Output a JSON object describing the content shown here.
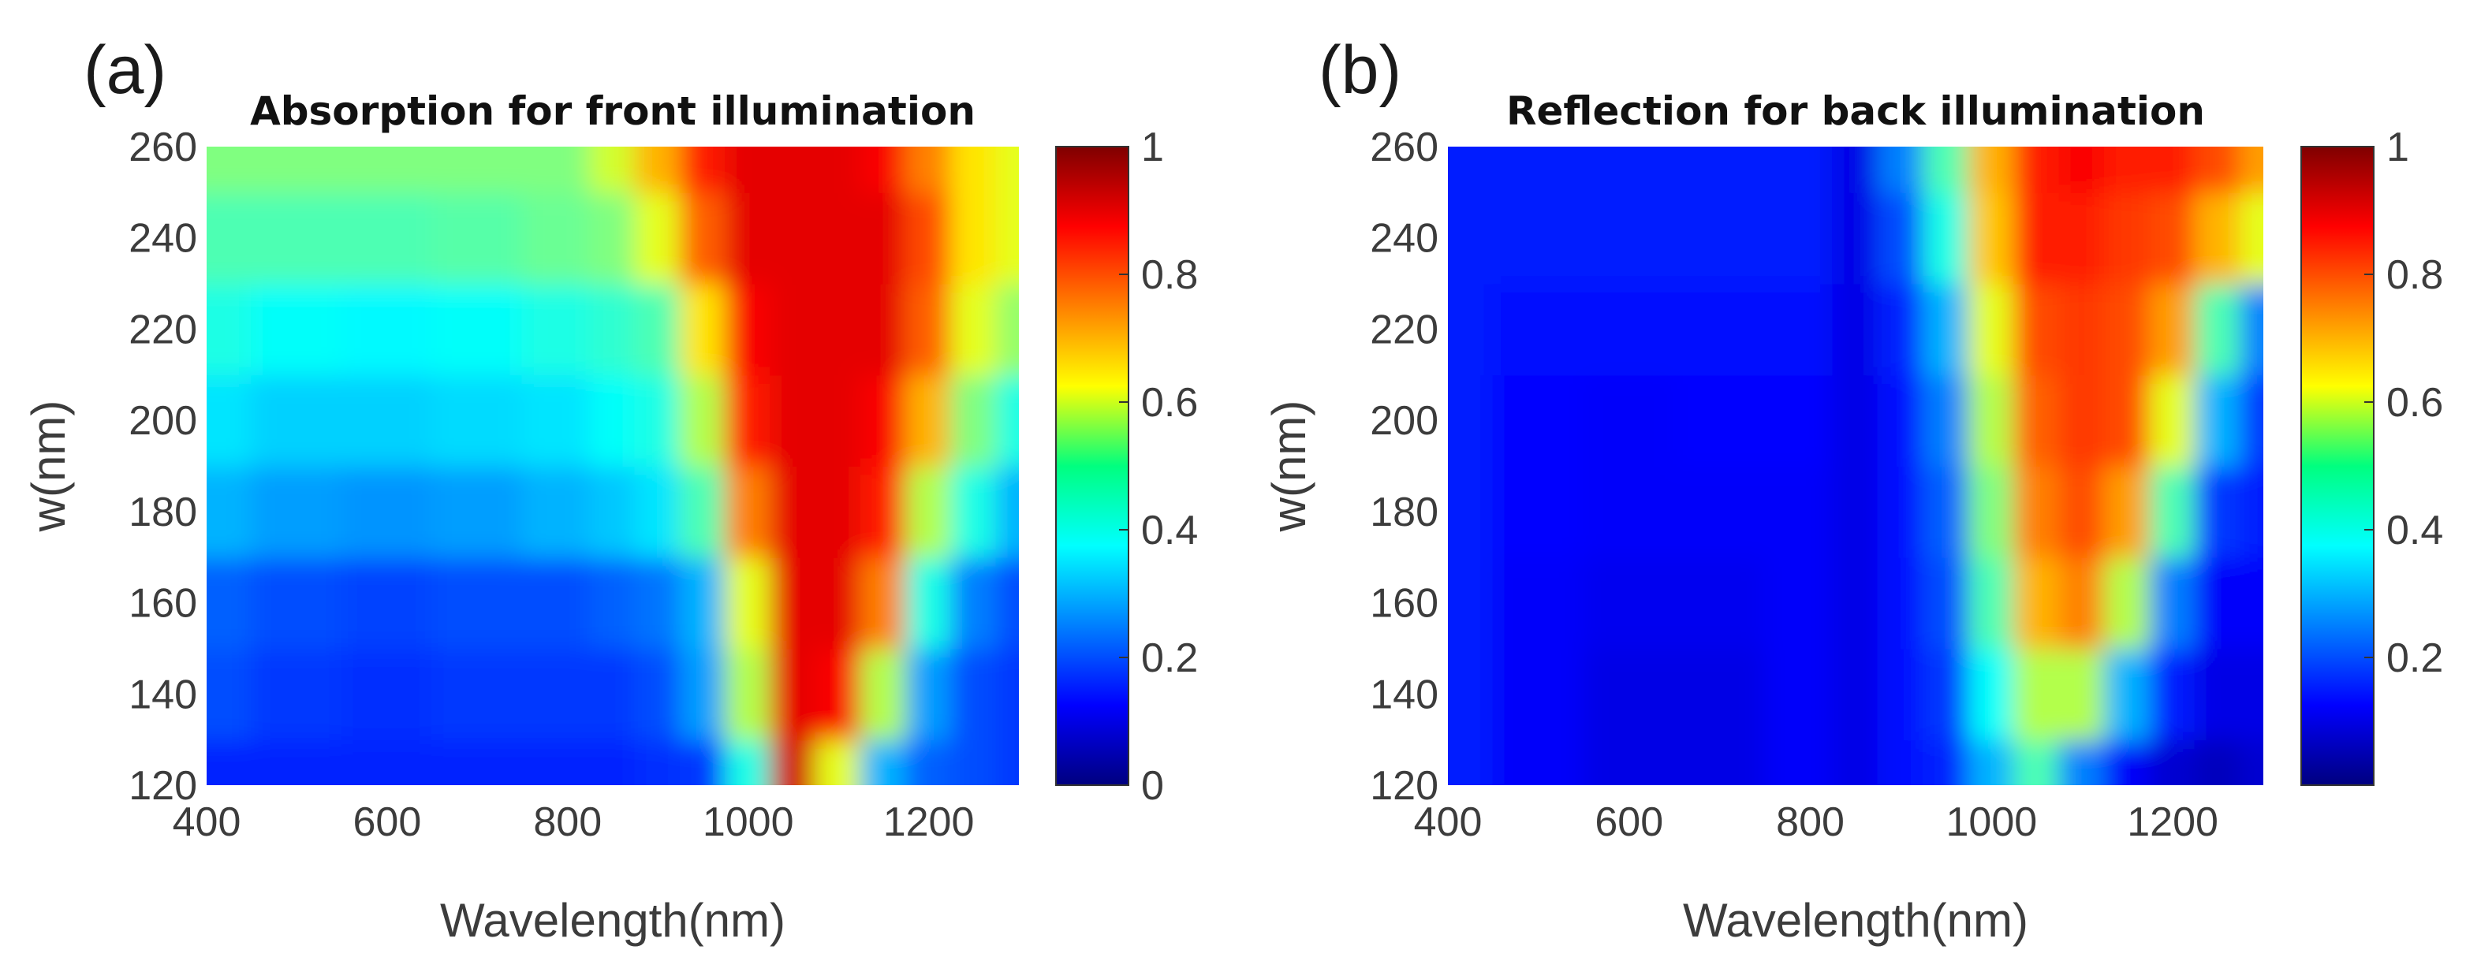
{
  "chart_data": [
    {
      "type": "heatmap",
      "panel_label": "(a)",
      "title": "Absorption for front illumination",
      "xlabel": "Wavelength(nm)",
      "ylabel": "w(nm)",
      "xlim": [
        400,
        1300
      ],
      "ylim": [
        120,
        260
      ],
      "xticks": [
        "400",
        "600",
        "800",
        "1000",
        "1200"
      ],
      "yticks": [
        "120",
        "140",
        "160",
        "180",
        "200",
        "220",
        "240",
        "260"
      ],
      "colorbar": {
        "range": [
          0,
          1
        ],
        "ticks": [
          "0",
          "0.2",
          "0.4",
          "0.6",
          "0.8",
          "1"
        ]
      },
      "colormap": "jet",
      "x": [
        400,
        500,
        600,
        700,
        800,
        850,
        900,
        950,
        1000,
        1050,
        1100,
        1150,
        1200,
        1250,
        1300
      ],
      "y": [
        120,
        140,
        160,
        180,
        200,
        220,
        240,
        260
      ],
      "z": [
        [
          0.16,
          0.16,
          0.16,
          0.16,
          0.16,
          0.16,
          0.17,
          0.18,
          0.4,
          0.92,
          0.6,
          0.3,
          0.22,
          0.2,
          0.18
        ],
        [
          0.2,
          0.18,
          0.17,
          0.18,
          0.18,
          0.18,
          0.2,
          0.28,
          0.55,
          0.9,
          0.88,
          0.55,
          0.28,
          0.2,
          0.18
        ],
        [
          0.22,
          0.2,
          0.19,
          0.2,
          0.2,
          0.22,
          0.24,
          0.3,
          0.6,
          0.9,
          0.9,
          0.75,
          0.4,
          0.25,
          0.2
        ],
        [
          0.3,
          0.28,
          0.27,
          0.28,
          0.3,
          0.32,
          0.35,
          0.45,
          0.75,
          0.9,
          0.9,
          0.85,
          0.55,
          0.4,
          0.3
        ],
        [
          0.35,
          0.33,
          0.33,
          0.34,
          0.35,
          0.38,
          0.4,
          0.55,
          0.85,
          0.9,
          0.9,
          0.88,
          0.7,
          0.5,
          0.4
        ],
        [
          0.4,
          0.38,
          0.37,
          0.38,
          0.4,
          0.42,
          0.45,
          0.65,
          0.88,
          0.9,
          0.9,
          0.9,
          0.78,
          0.6,
          0.52
        ],
        [
          0.45,
          0.45,
          0.45,
          0.46,
          0.48,
          0.5,
          0.6,
          0.78,
          0.9,
          0.9,
          0.9,
          0.9,
          0.8,
          0.65,
          0.6
        ],
        [
          0.5,
          0.5,
          0.5,
          0.5,
          0.5,
          0.58,
          0.7,
          0.85,
          0.9,
          0.9,
          0.9,
          0.88,
          0.75,
          0.65,
          0.6
        ]
      ]
    },
    {
      "type": "heatmap",
      "panel_label": "(b)",
      "title": "Reflection for back illumination",
      "xlabel": "Wavelength(nm)",
      "ylabel": "w(nm)",
      "xlim": [
        400,
        1300
      ],
      "ylim": [
        120,
        260
      ],
      "xticks": [
        "400",
        "600",
        "800",
        "1000",
        "1200"
      ],
      "yticks": [
        "120",
        "140",
        "160",
        "180",
        "200",
        "220",
        "240",
        "260"
      ],
      "colorbar": {
        "range": [
          0,
          1
        ],
        "ticks": [
          "0.2",
          "0.4",
          "0.6",
          "0.8",
          "1"
        ]
      },
      "colormap": "jet",
      "x": [
        400,
        500,
        600,
        700,
        800,
        850,
        900,
        950,
        1000,
        1050,
        1100,
        1150,
        1200,
        1250,
        1300
      ],
      "y": [
        120,
        140,
        160,
        180,
        200,
        220,
        240,
        260
      ],
      "z": [
        [
          0.15,
          0.12,
          0.1,
          0.1,
          0.12,
          0.1,
          0.14,
          0.16,
          0.3,
          0.45,
          0.25,
          0.12,
          0.08,
          0.06,
          0.08
        ],
        [
          0.15,
          0.12,
          0.1,
          0.1,
          0.12,
          0.1,
          0.14,
          0.18,
          0.38,
          0.55,
          0.55,
          0.3,
          0.15,
          0.1,
          0.1
        ],
        [
          0.15,
          0.12,
          0.11,
          0.11,
          0.12,
          0.1,
          0.14,
          0.2,
          0.45,
          0.7,
          0.75,
          0.55,
          0.25,
          0.12,
          0.12
        ],
        [
          0.15,
          0.13,
          0.12,
          0.12,
          0.12,
          0.1,
          0.14,
          0.22,
          0.5,
          0.75,
          0.8,
          0.72,
          0.45,
          0.18,
          0.15
        ],
        [
          0.15,
          0.13,
          0.12,
          0.13,
          0.13,
          0.1,
          0.14,
          0.25,
          0.55,
          0.78,
          0.82,
          0.8,
          0.6,
          0.3,
          0.18
        ],
        [
          0.15,
          0.14,
          0.14,
          0.14,
          0.14,
          0.1,
          0.16,
          0.3,
          0.6,
          0.8,
          0.82,
          0.8,
          0.72,
          0.45,
          0.25
        ],
        [
          0.15,
          0.15,
          0.15,
          0.15,
          0.15,
          0.1,
          0.2,
          0.4,
          0.68,
          0.85,
          0.85,
          0.82,
          0.8,
          0.7,
          0.6
        ],
        [
          0.15,
          0.15,
          0.15,
          0.15,
          0.15,
          0.1,
          0.25,
          0.45,
          0.7,
          0.85,
          0.88,
          0.85,
          0.85,
          0.8,
          0.72
        ]
      ]
    }
  ]
}
